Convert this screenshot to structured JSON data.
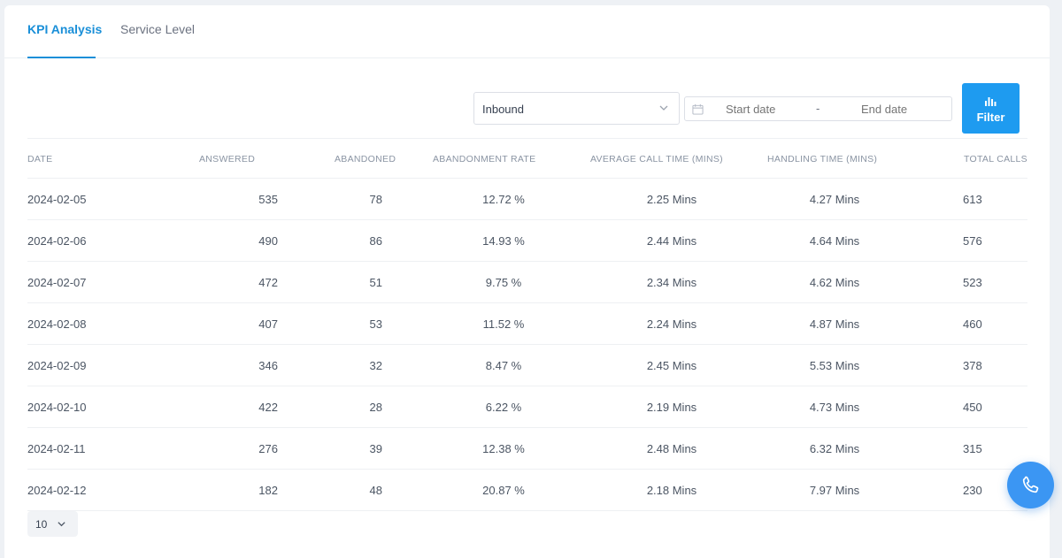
{
  "tabs": [
    {
      "label": "KPI Analysis",
      "active": true
    },
    {
      "label": "Service Level",
      "active": false
    }
  ],
  "filters": {
    "direction": {
      "selected": "Inbound",
      "icon": "chevron-down-icon"
    },
    "date_range": {
      "start_placeholder": "Start date",
      "separator": "-",
      "end_placeholder": "End date",
      "icon": "calendar-icon"
    },
    "filter_button": {
      "label": "Filter",
      "icon": "bar-chart-icon"
    }
  },
  "table": {
    "columns": [
      "DATE",
      "ANSWERED",
      "ABANDONED",
      "ABANDONMENT RATE",
      "AVERAGE CALL TIME (MINS)",
      "HANDLING TIME (MINS)",
      "TOTAL CALLS"
    ],
    "rows": [
      {
        "date": "2024-02-05",
        "answered": "535",
        "abandoned": "78",
        "rate": "12.72 %",
        "avg": "2.25 Mins",
        "handling": "4.27 Mins",
        "total": "613"
      },
      {
        "date": "2024-02-06",
        "answered": "490",
        "abandoned": "86",
        "rate": "14.93 %",
        "avg": "2.44 Mins",
        "handling": "4.64 Mins",
        "total": "576"
      },
      {
        "date": "2024-02-07",
        "answered": "472",
        "abandoned": "51",
        "rate": "9.75 %",
        "avg": "2.34 Mins",
        "handling": "4.62 Mins",
        "total": "523"
      },
      {
        "date": "2024-02-08",
        "answered": "407",
        "abandoned": "53",
        "rate": "11.52 %",
        "avg": "2.24 Mins",
        "handling": "4.87 Mins",
        "total": "460"
      },
      {
        "date": "2024-02-09",
        "answered": "346",
        "abandoned": "32",
        "rate": "8.47 %",
        "avg": "2.45 Mins",
        "handling": "5.53 Mins",
        "total": "378"
      },
      {
        "date": "2024-02-10",
        "answered": "422",
        "abandoned": "28",
        "rate": "6.22 %",
        "avg": "2.19 Mins",
        "handling": "4.73 Mins",
        "total": "450"
      },
      {
        "date": "2024-02-11",
        "answered": "276",
        "abandoned": "39",
        "rate": "12.38 %",
        "avg": "2.48 Mins",
        "handling": "6.32 Mins",
        "total": "315"
      },
      {
        "date": "2024-02-12",
        "answered": "182",
        "abandoned": "48",
        "rate": "20.87 %",
        "avg": "2.18 Mins",
        "handling": "7.97 Mins",
        "total": "230"
      }
    ]
  },
  "pagination": {
    "page_size": "10",
    "icon": "chevron-down-icon"
  },
  "call_button": {
    "icon": "phone-icon"
  },
  "colors": {
    "accent": "#1a8fd8",
    "button": "#1e9bf0",
    "fab": "#3b96f3"
  }
}
